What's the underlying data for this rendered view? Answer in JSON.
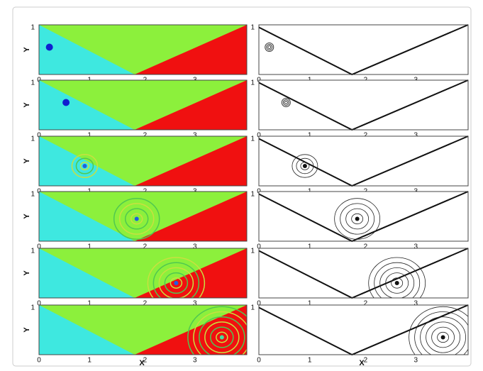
{
  "figure": {
    "x_ticks": [
      "0",
      "1",
      "2",
      "3"
    ],
    "y_tick": "1",
    "y_label": "Y",
    "x_label": "X"
  }
}
